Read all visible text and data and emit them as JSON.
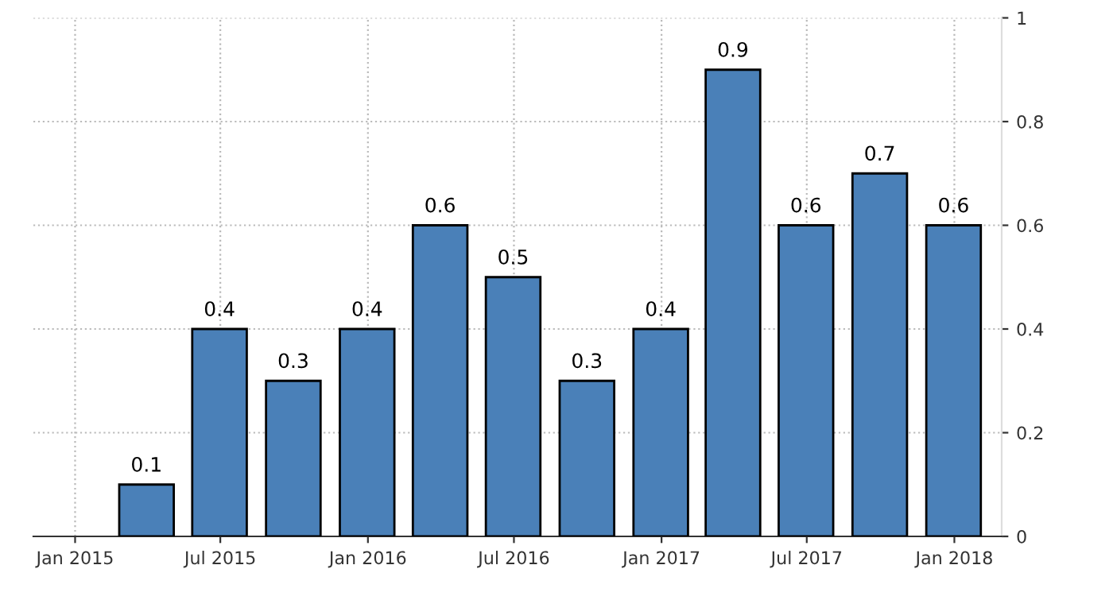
{
  "chart_data": {
    "type": "bar",
    "x": [
      "2015-03-31",
      "2015-06-30",
      "2015-09-30",
      "2015-12-31",
      "2016-03-31",
      "2016-06-30",
      "2016-09-30",
      "2016-12-31",
      "2017-03-31",
      "2017-06-30",
      "2017-09-30",
      "2017-12-31"
    ],
    "values": [
      0.1,
      0.4,
      0.3,
      0.4,
      0.6,
      0.5,
      0.3,
      0.4,
      0.9,
      0.6,
      0.7,
      0.6
    ],
    "color": "#4a80b8",
    "data_labels": true,
    "xlim": [
      "2014-11-10",
      "2018-03-01"
    ],
    "xticks": [
      {
        "value": "2015-01-01",
        "label": "Jan 2015"
      },
      {
        "value": "2015-07-01",
        "label": "Jul 2015"
      },
      {
        "value": "2016-01-01",
        "label": "Jan 2016"
      },
      {
        "value": "2016-07-01",
        "label": "Jul 2016"
      },
      {
        "value": "2017-01-01",
        "label": "Jan 2017"
      },
      {
        "value": "2017-07-01",
        "label": "Jul 2017"
      },
      {
        "value": "2018-01-01",
        "label": "Jan 2018"
      }
    ],
    "ylim": [
      0,
      1
    ],
    "yticks": [
      0,
      0.2,
      0.4,
      0.6,
      0.8,
      1
    ],
    "grid": true
  }
}
